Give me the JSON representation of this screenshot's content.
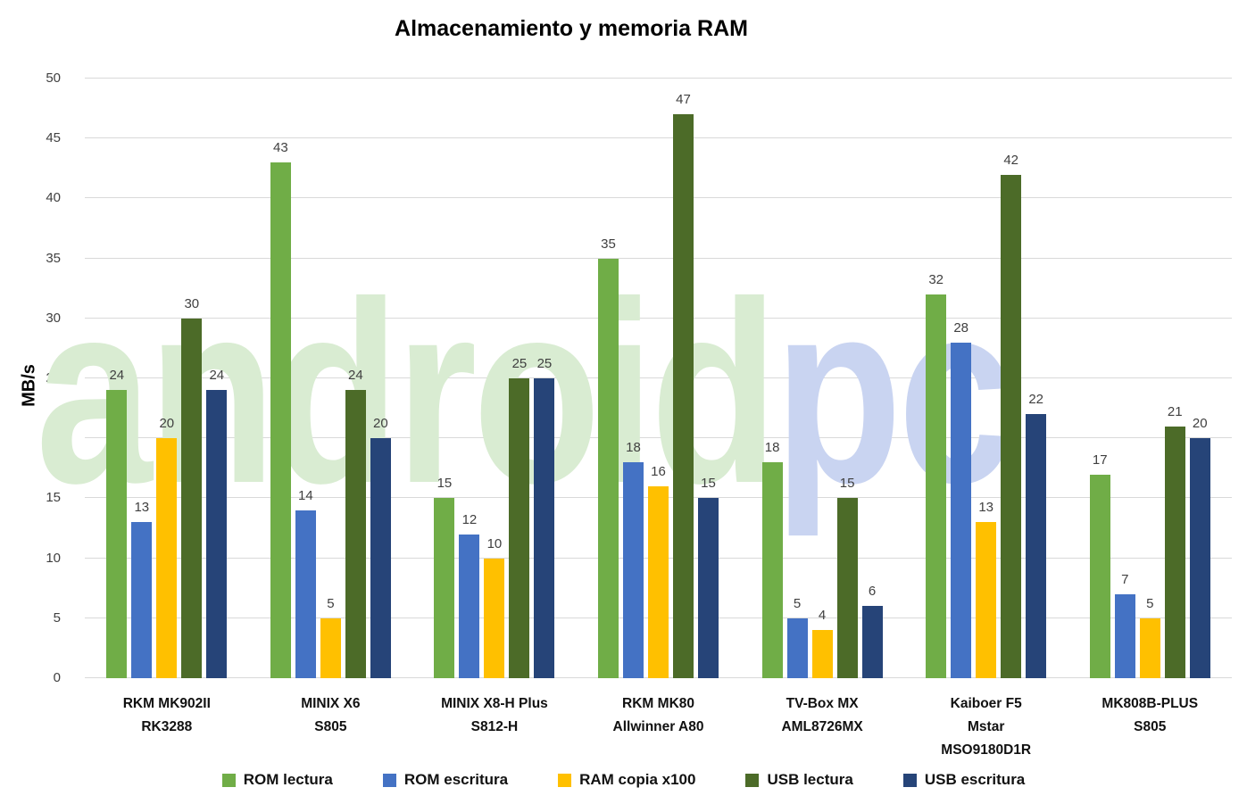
{
  "watermark": {
    "part1": "android",
    "part2": "pc",
    "color1": "#d9ecd2",
    "color2": "#c9d4f1"
  },
  "colors": {
    "gridline": "#d9d9d9",
    "data_label": "#404040",
    "axis_label": "#404040"
  },
  "chart_data": {
    "type": "bar",
    "title": "Almacenamiento y memoria RAM",
    "xlabel": "",
    "ylabel": "MB/s",
    "ylim": [
      0,
      50
    ],
    "yticks": [
      0,
      5,
      10,
      15,
      20,
      25,
      30,
      35,
      40,
      45,
      50
    ],
    "grid": true,
    "legend_position": "bottom",
    "categories": [
      "RKM MK902II\nRK3288",
      "MINIX X6\nS805",
      "MINIX X8-H Plus\nS812-H",
      "RKM MK80\nAllwinner A80",
      "TV-Box MX\nAML8726MX",
      "Kaiboer F5\nMstar\nMSO9180D1R",
      "MK808B-PLUS\nS805"
    ],
    "series": [
      {
        "name": "ROM lectura",
        "color": "#70AD47",
        "values": [
          24,
          43,
          15,
          35,
          18,
          32,
          17
        ]
      },
      {
        "name": "ROM escritura",
        "color": "#4472C4",
        "values": [
          13,
          14,
          12,
          18,
          5,
          28,
          7
        ]
      },
      {
        "name": "RAM copia x100",
        "color": "#FFC000",
        "values": [
          20,
          5,
          10,
          16,
          4,
          13,
          5
        ]
      },
      {
        "name": "USB lectura",
        "color": "#4C6B28",
        "values": [
          30,
          24,
          25,
          47,
          15,
          42,
          21
        ]
      },
      {
        "name": "USB escritura",
        "color": "#264478",
        "values": [
          24,
          20,
          25,
          15,
          6,
          22,
          20
        ]
      }
    ]
  }
}
